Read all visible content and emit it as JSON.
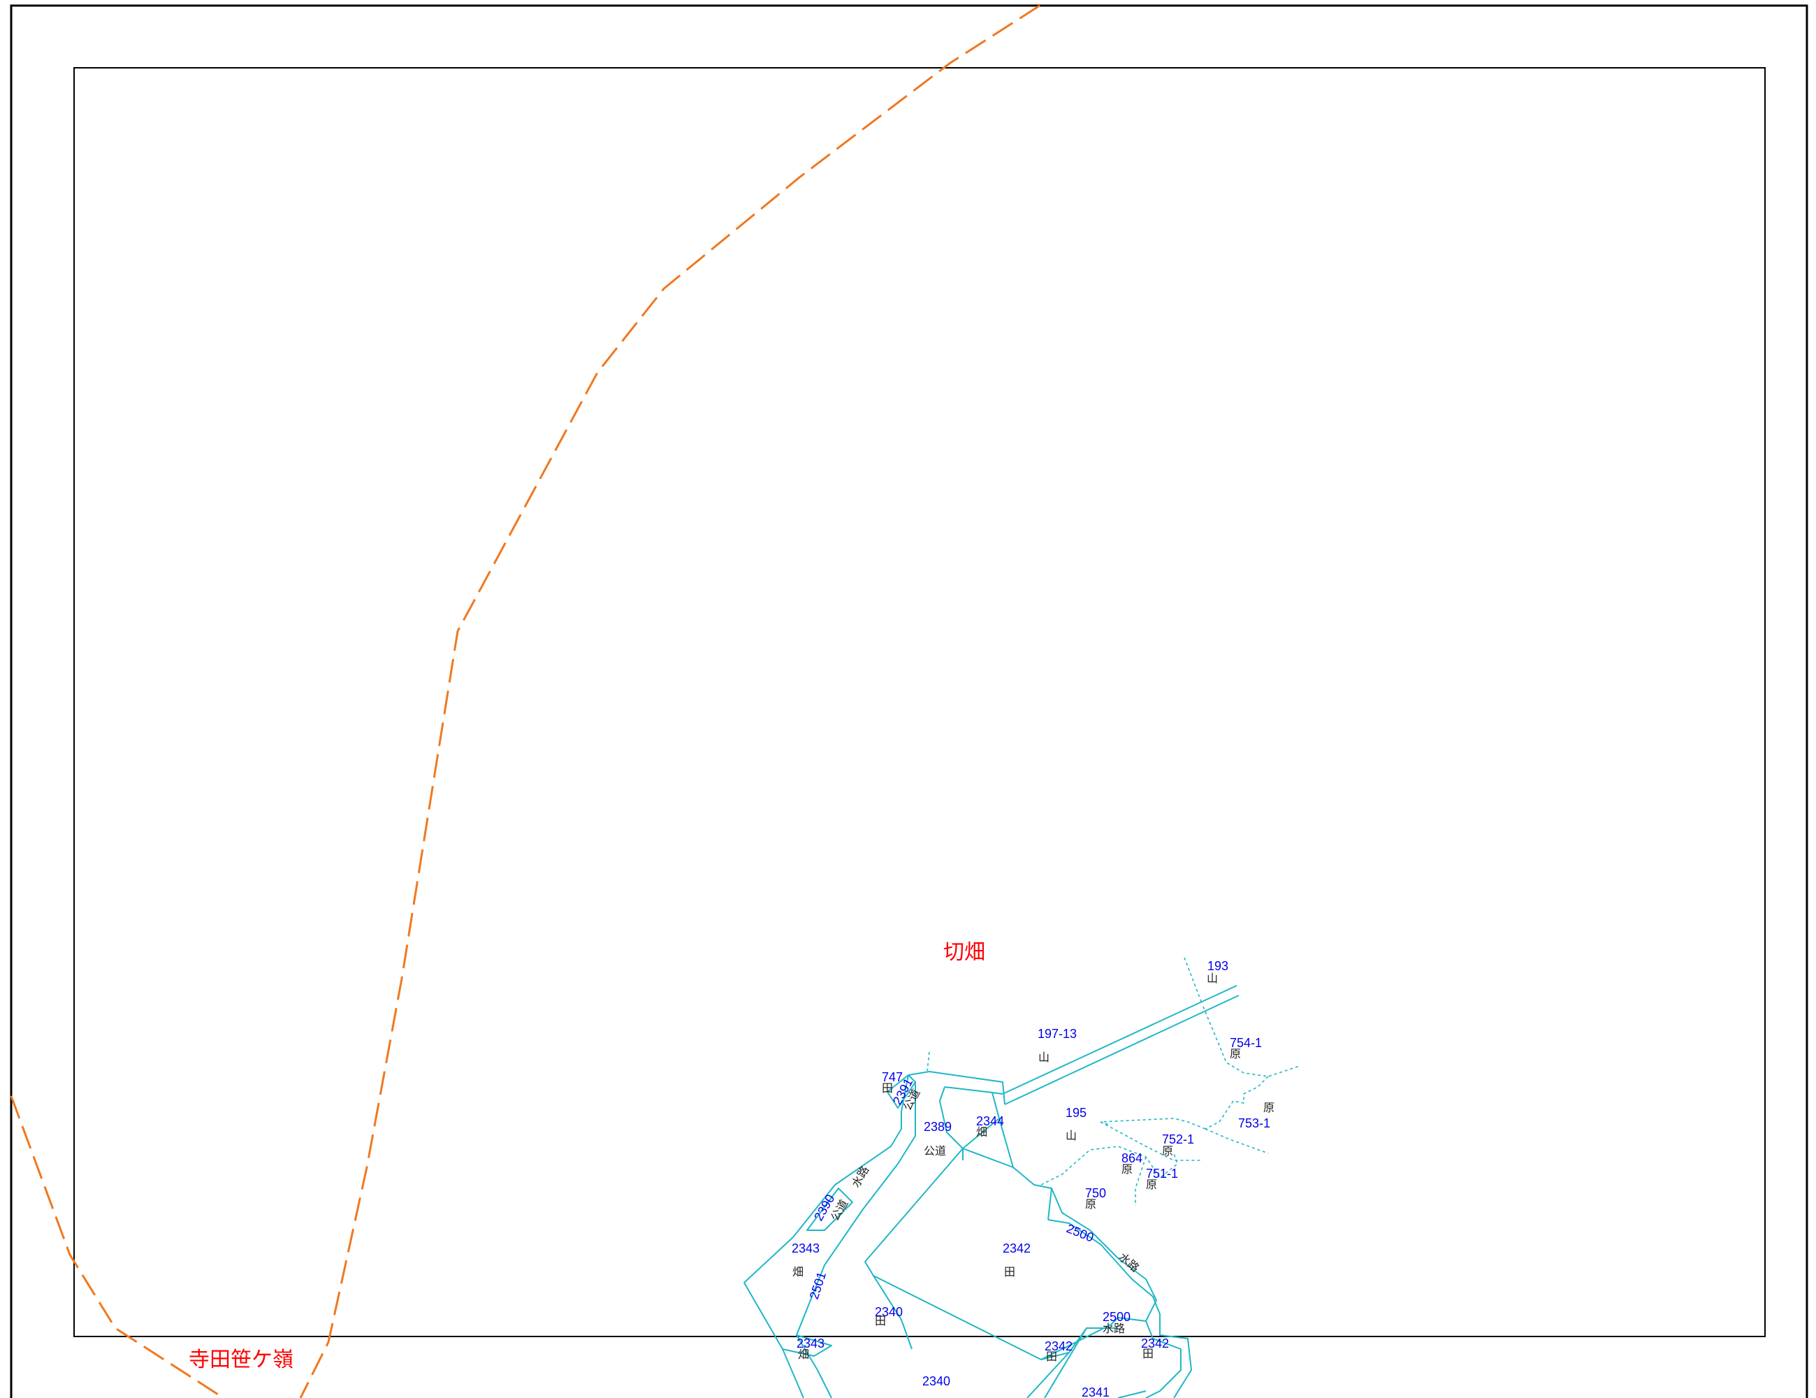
{
  "colors": {
    "district_label": "#ff0000",
    "parcel_number": "#0000ee",
    "land_use": "#222222",
    "parcel_line": "#1fb7c7",
    "boundary_line": "#f07820",
    "frame": "#000000"
  },
  "districts": {
    "kiribatake": "切畑",
    "terada_sasagamine": "寺田笹ケ嶺"
  },
  "parcels": [
    {
      "number": "193",
      "use": "山"
    },
    {
      "number": "197-13",
      "use": "山"
    },
    {
      "number": "754-1",
      "use": "原"
    },
    {
      "number": "747",
      "use": "田"
    },
    {
      "number": "2391",
      "use": "公道"
    },
    {
      "number": "2389",
      "use": "公道"
    },
    {
      "number": "2344",
      "use": "畑"
    },
    {
      "number": "195",
      "use": "山"
    },
    {
      "number": "753-1",
      "use": "原"
    },
    {
      "number": "752-1",
      "use": "原"
    },
    {
      "number": "864",
      "use": "原"
    },
    {
      "number": "751-1",
      "use": "原"
    },
    {
      "number": "750",
      "use": "原"
    },
    {
      "number": "2390",
      "use": "公道"
    },
    {
      "number": "2500",
      "use": "水路"
    },
    {
      "number": "2342",
      "use": "田"
    },
    {
      "number": "2343",
      "use": "畑"
    },
    {
      "number": "2501",
      "use": "水路"
    },
    {
      "number": "2340",
      "use": "田"
    },
    {
      "number": "2500",
      "use": "水路"
    },
    {
      "number": "2342",
      "use": "田"
    },
    {
      "number": "2342",
      "use": "田"
    },
    {
      "number": "2343",
      "use": "畑"
    },
    {
      "number": "2340",
      "use": ""
    },
    {
      "number": "2341",
      "use": ""
    }
  ],
  "extra_labels": {
    "hara_754": "原",
    "waterway_upper": "水路",
    "waterway_2500": "水路"
  }
}
